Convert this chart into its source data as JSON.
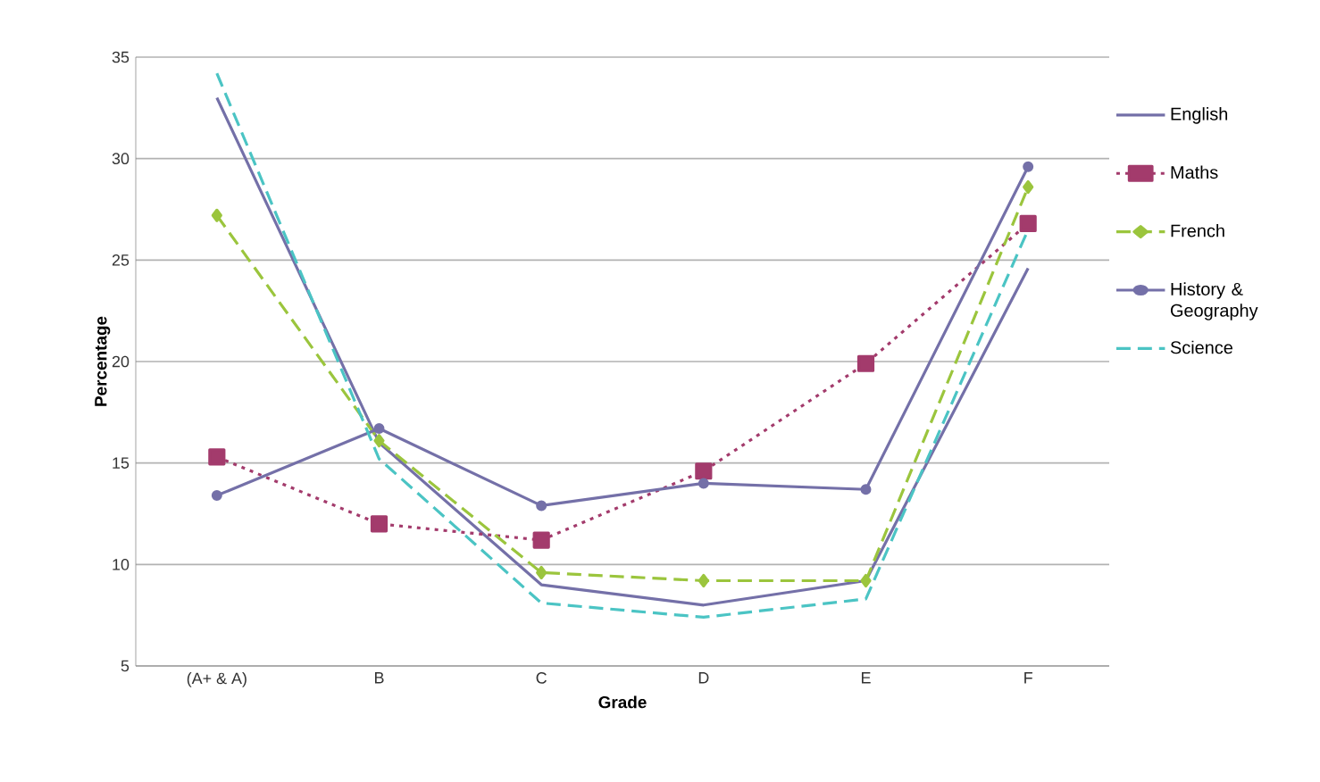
{
  "chart_data": {
    "type": "line",
    "xlabel": "Grade",
    "ylabel": "Percentage",
    "categories": [
      "(A+ & A)",
      "B",
      "C",
      "D",
      "E",
      "F"
    ],
    "series": [
      {
        "name": "English",
        "color": "#7470a8",
        "line_style": "solid",
        "marker": "none",
        "values": [
          33.0,
          16.0,
          9.0,
          8.0,
          9.2,
          24.6
        ]
      },
      {
        "name": "Maths",
        "color": "#a33b6c",
        "line_style": "dotted",
        "marker": "square",
        "values": [
          15.3,
          12.0,
          11.2,
          14.6,
          19.9,
          26.8
        ]
      },
      {
        "name": "French",
        "color": "#9bc53d",
        "line_style": "dashed",
        "marker": "diamond",
        "values": [
          27.2,
          16.1,
          9.6,
          9.2,
          9.2,
          28.6
        ]
      },
      {
        "name": "History & Geography",
        "color": "#7470a8",
        "line_style": "solid",
        "marker": "circle",
        "values": [
          13.4,
          16.7,
          12.9,
          14.0,
          13.7,
          29.6
        ]
      },
      {
        "name": "Science",
        "color": "#4bc4c4",
        "line_style": "dashed",
        "marker": "none",
        "values": [
          34.2,
          15.2,
          8.1,
          7.4,
          8.3,
          26.5
        ]
      }
    ],
    "ylim": [
      5,
      35
    ],
    "yticks": [
      5,
      10,
      15,
      20,
      25,
      30,
      35
    ],
    "grid": "y",
    "legend": "right"
  }
}
